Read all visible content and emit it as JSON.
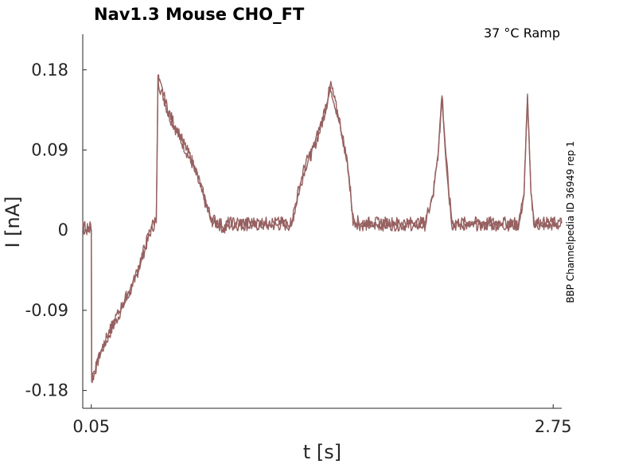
{
  "chart_data": {
    "type": "line",
    "title": "Nav1.3  Mouse  CHO_FT",
    "subtitle": "37 °C  Ramp",
    "side_label": "BBP Channelpedia ID 36949 rep 1",
    "xlabel": "t [s]",
    "ylabel": "I [nA]",
    "xlim": [
      0.0,
      2.8
    ],
    "ylim": [
      -0.2,
      0.22
    ],
    "x_ticks": [
      0.05,
      2.75
    ],
    "x_tick_labels": [
      "0.05",
      "2.75"
    ],
    "y_ticks": [
      0.18,
      0.09,
      0,
      -0.09,
      -0.18
    ],
    "y_tick_labels": [
      "0.18",
      "0.09",
      "0",
      "-0.09",
      "-0.18"
    ],
    "grid": false,
    "line_color": "#966060",
    "series": [
      {
        "x": [
          0.0,
          0.02,
          0.05,
          0.052,
          0.07,
          0.1,
          0.15,
          0.2,
          0.25,
          0.3,
          0.35,
          0.4,
          0.43,
          0.44,
          0.45,
          0.47,
          0.5,
          0.55,
          0.6,
          0.65,
          0.7,
          0.75,
          0.8,
          0.83,
          0.85,
          0.9,
          1.0,
          1.1,
          1.22,
          1.26,
          1.3,
          1.35,
          1.4,
          1.45,
          1.5,
          1.55,
          1.58,
          1.62,
          1.65,
          1.7,
          1.8,
          1.9,
          2.0,
          2.05,
          2.08,
          2.1,
          2.12,
          2.14,
          2.16,
          2.2,
          2.3,
          2.4,
          2.5,
          2.55,
          2.58,
          2.6,
          2.62,
          2.64,
          2.7,
          2.75,
          2.8
        ],
        "y": [
          0.0,
          0.0,
          0.0,
          -0.17,
          -0.16,
          -0.14,
          -0.12,
          -0.1,
          -0.08,
          -0.06,
          -0.03,
          0.0,
          0.01,
          0.17,
          0.16,
          0.15,
          0.13,
          0.11,
          0.09,
          0.07,
          0.04,
          0.01,
          0.005,
          0.0,
          0.005,
          0.005,
          0.005,
          0.005,
          0.005,
          0.04,
          0.07,
          0.09,
          0.12,
          0.16,
          0.12,
          0.07,
          0.01,
          0.005,
          0.005,
          0.005,
          0.005,
          0.005,
          0.005,
          0.04,
          0.09,
          0.15,
          0.09,
          0.04,
          0.005,
          0.005,
          0.005,
          0.005,
          0.005,
          0.005,
          0.04,
          0.15,
          0.04,
          0.005,
          0.005,
          0.005,
          0.005
        ]
      }
    ]
  }
}
